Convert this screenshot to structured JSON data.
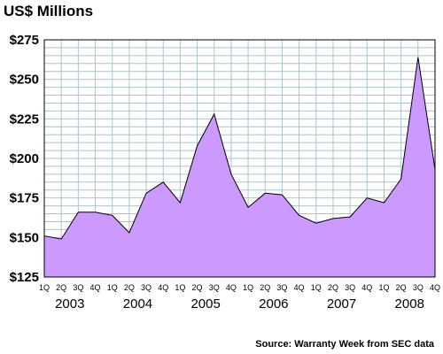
{
  "chart_data": {
    "type": "area",
    "title": "US$ Millions",
    "source": "Source: Warranty Week from SEC data",
    "quarter_labels": [
      "1Q",
      "2Q",
      "3Q",
      "4Q",
      "1Q",
      "2Q",
      "3Q",
      "4Q",
      "1Q",
      "2Q",
      "3Q",
      "4Q",
      "1Q",
      "2Q",
      "3Q",
      "4Q",
      "1Q",
      "2Q",
      "3Q",
      "4Q",
      "1Q",
      "2Q",
      "3Q",
      "4Q"
    ],
    "years": [
      "2003",
      "2004",
      "2005",
      "2006",
      "2007",
      "2008"
    ],
    "values": [
      151,
      149,
      166,
      166,
      164,
      153,
      178,
      185,
      172,
      208,
      228,
      190,
      169,
      178,
      177,
      164,
      159,
      162,
      163,
      175,
      172,
      187,
      264,
      193
    ],
    "ylim": [
      125,
      275
    ],
    "yticks": [
      "$125",
      "$150",
      "$175",
      "$200",
      "$225",
      "$250",
      "$275"
    ],
    "grid": true,
    "colors": {
      "fill": "#cc99ff",
      "line": "#000000",
      "grid": "#aac4cc"
    }
  }
}
